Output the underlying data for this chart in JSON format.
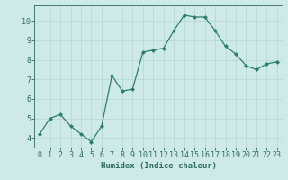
{
  "x": [
    0,
    1,
    2,
    3,
    4,
    5,
    6,
    7,
    8,
    9,
    10,
    11,
    12,
    13,
    14,
    15,
    16,
    17,
    18,
    19,
    20,
    21,
    22,
    23
  ],
  "y": [
    4.2,
    5.0,
    5.2,
    4.6,
    4.2,
    3.8,
    4.6,
    7.2,
    6.4,
    6.5,
    8.4,
    8.5,
    8.6,
    9.5,
    10.3,
    10.2,
    10.2,
    9.5,
    8.7,
    8.3,
    7.7,
    7.5,
    7.8,
    7.9
  ],
  "line_color": "#2d7d6e",
  "marker": "D",
  "marker_size": 2.0,
  "bg_color": "#ceeae8",
  "grid_color": "#b8d8d5",
  "axis_color": "#2d6b60",
  "xlabel": "Humidex (Indice chaleur)",
  "xlabel_fontsize": 6.5,
  "tick_label_fontsize": 6.0,
  "yticks": [
    4,
    5,
    6,
    7,
    8,
    9,
    10
  ],
  "ylim": [
    3.5,
    10.8
  ],
  "xlim": [
    -0.5,
    23.5
  ]
}
